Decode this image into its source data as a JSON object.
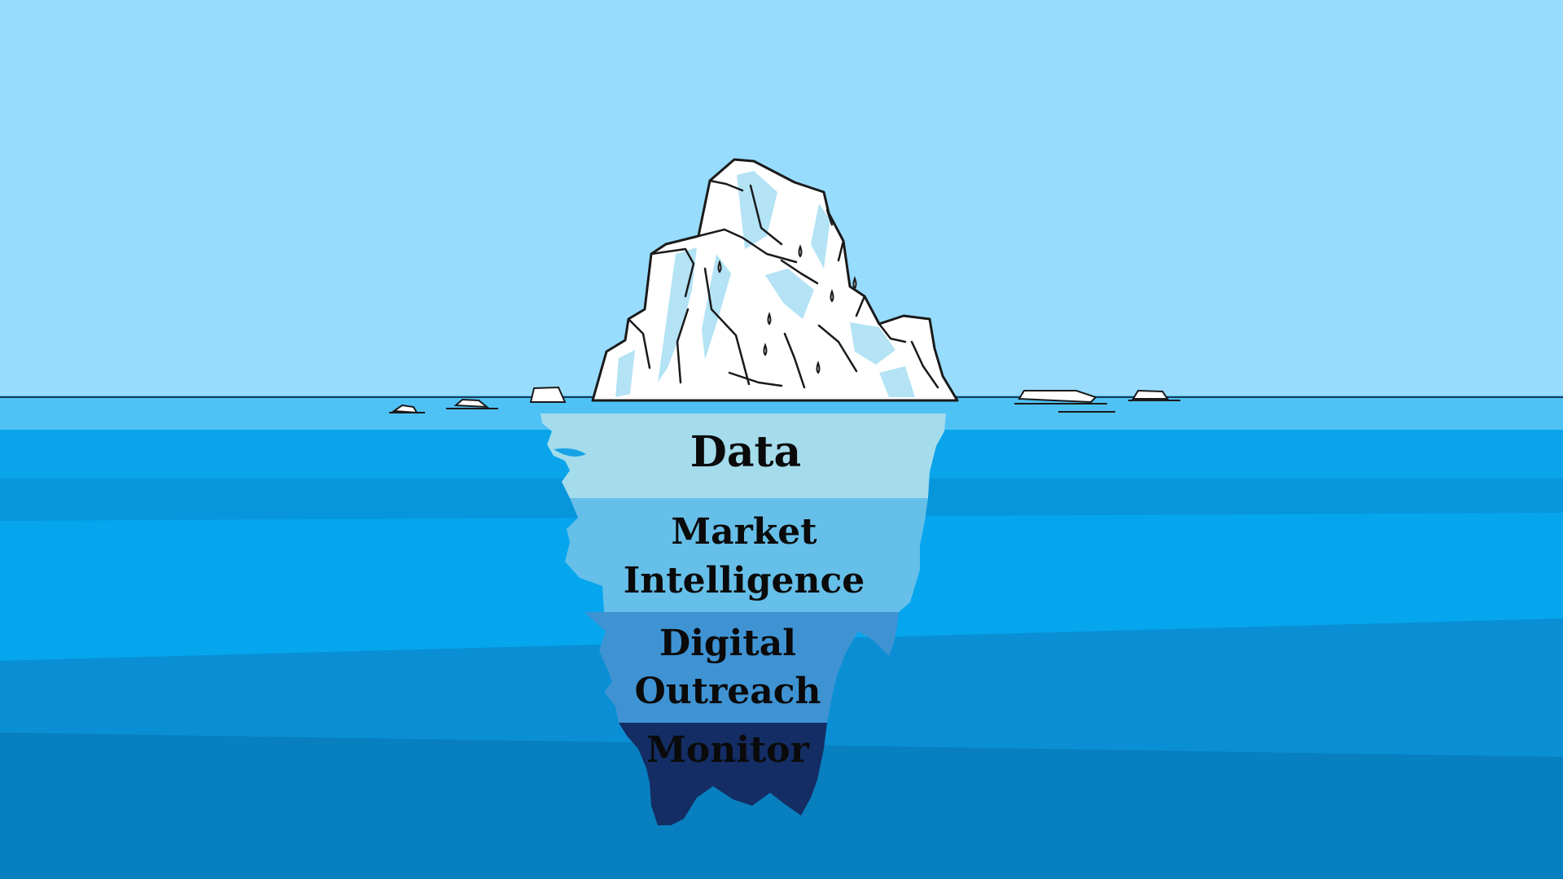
{
  "diagram": {
    "layers": [
      {
        "lines": [
          "Data"
        ]
      },
      {
        "lines": [
          "Market",
          "Intelligence"
        ]
      },
      {
        "lines": [
          "Digital",
          "Outreach"
        ]
      },
      {
        "lines": [
          "Monitor"
        ]
      }
    ]
  },
  "colors": {
    "sky": "#97dcfd",
    "sea_surface": "#55c5f5",
    "sea_mid": "#0faaf0",
    "sea_deep": "#0a86c9",
    "layer_data": "#a4dcec",
    "layer_market_intelligence": "#66bfe8",
    "layer_digital_outreach": "#3f93d3",
    "layer_monitor": "#142d64",
    "ice_outline": "#1a1a1a"
  }
}
